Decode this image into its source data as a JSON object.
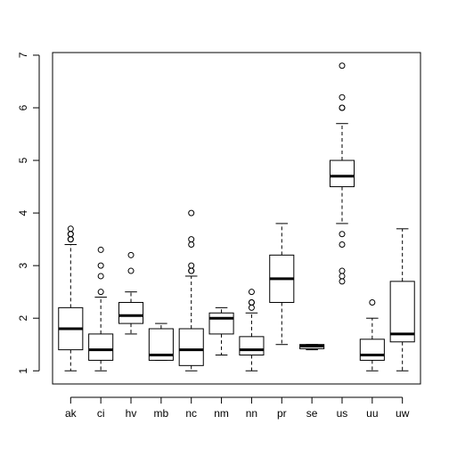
{
  "chart_data": {
    "type": "boxplot",
    "title": "",
    "xlabel": "",
    "ylabel": "",
    "ylim": [
      0.75,
      7.05
    ],
    "y_ticks": [
      1,
      2,
      3,
      4,
      5,
      6,
      7
    ],
    "grid": false,
    "categories": [
      "ak",
      "ci",
      "hv",
      "mb",
      "nc",
      "nm",
      "nn",
      "pr",
      "se",
      "us",
      "uu",
      "uw"
    ],
    "boxes": [
      {
        "category": "ak",
        "whisker_low": 1.0,
        "q1": 1.4,
        "median": 1.8,
        "q3": 2.2,
        "whisker_high": 3.4,
        "outliers": [
          3.5,
          3.5,
          3.6,
          3.6,
          3.7
        ]
      },
      {
        "category": "ci",
        "whisker_low": 1.0,
        "q1": 1.2,
        "median": 1.4,
        "q3": 1.7,
        "whisker_high": 2.4,
        "outliers": [
          2.5,
          2.8,
          3.0,
          3.3
        ]
      },
      {
        "category": "hv",
        "whisker_low": 1.7,
        "q1": 1.9,
        "median": 2.05,
        "q3": 2.3,
        "whisker_high": 2.5,
        "outliers": [
          2.9,
          3.2
        ]
      },
      {
        "category": "mb",
        "whisker_low": 1.2,
        "q1": 1.2,
        "median": 1.3,
        "q3": 1.8,
        "whisker_high": 1.9,
        "outliers": []
      },
      {
        "category": "nc",
        "whisker_low": 1.0,
        "q1": 1.1,
        "median": 1.4,
        "q3": 1.8,
        "whisker_high": 2.8,
        "outliers": [
          2.9,
          2.9,
          3.0,
          3.4,
          3.5,
          4.0
        ]
      },
      {
        "category": "nm",
        "whisker_low": 1.3,
        "q1": 1.7,
        "median": 2.0,
        "q3": 2.1,
        "whisker_high": 2.2,
        "outliers": []
      },
      {
        "category": "nn",
        "whisker_low": 1.0,
        "q1": 1.3,
        "median": 1.4,
        "q3": 1.65,
        "whisker_high": 2.1,
        "outliers": [
          2.2,
          2.3,
          2.3,
          2.5
        ]
      },
      {
        "category": "pr",
        "whisker_low": 1.5,
        "q1": 2.3,
        "median": 2.75,
        "q3": 3.2,
        "whisker_high": 3.8,
        "outliers": []
      },
      {
        "category": "se",
        "whisker_low": 1.4,
        "q1": 1.42,
        "median": 1.47,
        "q3": 1.5,
        "whisker_high": 1.5,
        "outliers": []
      },
      {
        "category": "us",
        "whisker_low": 3.8,
        "q1": 4.5,
        "median": 4.7,
        "q3": 5.0,
        "whisker_high": 5.7,
        "outliers": [
          2.7,
          2.8,
          2.9,
          3.4,
          3.6,
          6.0,
          6.0,
          6.2,
          6.8
        ]
      },
      {
        "category": "uu",
        "whisker_low": 1.0,
        "q1": 1.2,
        "median": 1.3,
        "q3": 1.6,
        "whisker_high": 2.0,
        "outliers": [
          2.3
        ]
      },
      {
        "category": "uw",
        "whisker_low": 1.0,
        "q1": 1.55,
        "median": 1.7,
        "q3": 2.7,
        "whisker_high": 3.7,
        "outliers": []
      }
    ]
  }
}
